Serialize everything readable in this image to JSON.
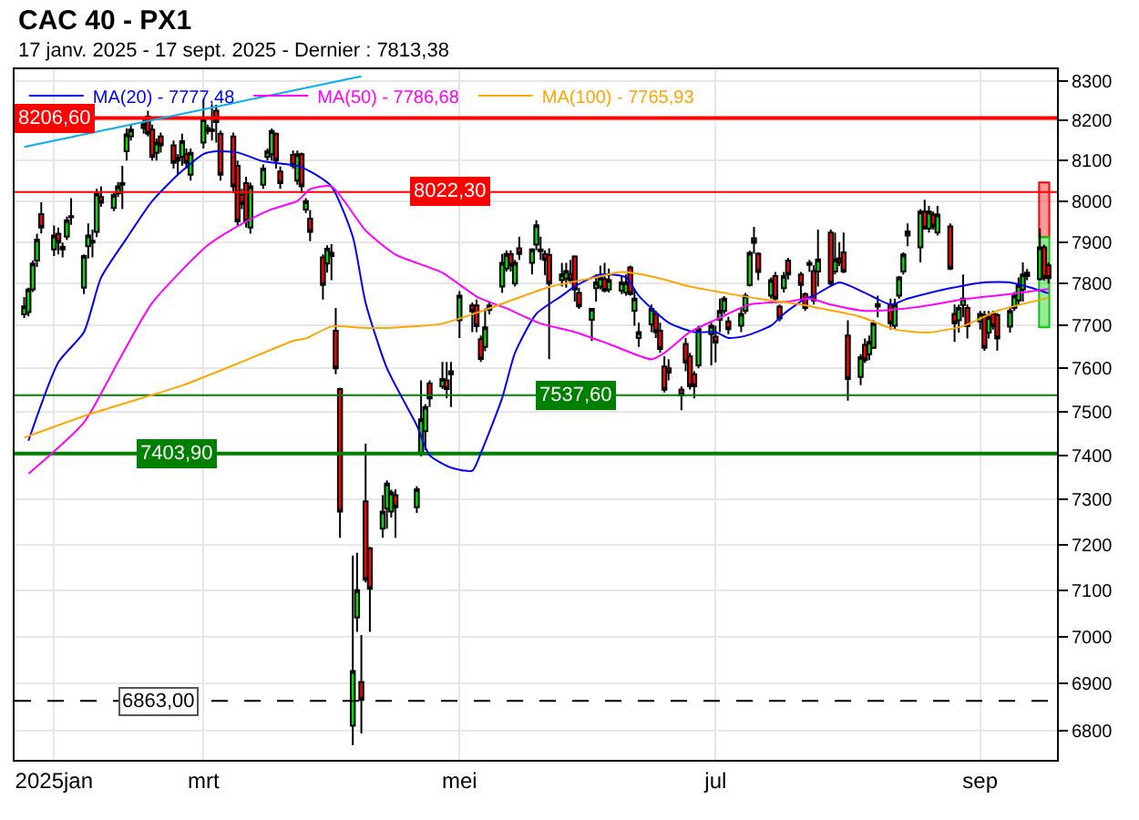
{
  "chart_data": {
    "type": "candlestick",
    "title": "CAC 40 - PX1",
    "subtitle": "17 janv. 2025 - 17 sept. 2025 - Dernier : 7813,38",
    "x": [
      "2025-01-20",
      "2025-01-21",
      "2025-01-22",
      "2025-01-23",
      "2025-01-24",
      "2025-01-27",
      "2025-01-28",
      "2025-01-29",
      "2025-01-30",
      "2025-01-31",
      "2025-02-03",
      "2025-02-04",
      "2025-02-05",
      "2025-02-06",
      "2025-02-07",
      "2025-02-10",
      "2025-02-11",
      "2025-02-12",
      "2025-02-13",
      "2025-02-14",
      "2025-02-17",
      "2025-02-18",
      "2025-02-19",
      "2025-02-20",
      "2025-02-21",
      "2025-02-24",
      "2025-02-25",
      "2025-02-26",
      "2025-02-27",
      "2025-02-28",
      "2025-03-03",
      "2025-03-04",
      "2025-03-05",
      "2025-03-06",
      "2025-03-07",
      "2025-03-10",
      "2025-03-11",
      "2025-03-12",
      "2025-03-13",
      "2025-03-14",
      "2025-03-17",
      "2025-03-18",
      "2025-03-19",
      "2025-03-20",
      "2025-03-21",
      "2025-03-24",
      "2025-03-25",
      "2025-03-26",
      "2025-03-27",
      "2025-03-28",
      "2025-03-31",
      "2025-04-01",
      "2025-04-02",
      "2025-04-03",
      "2025-04-04",
      "2025-04-07",
      "2025-04-08",
      "2025-04-09",
      "2025-04-10",
      "2025-04-11",
      "2025-04-14",
      "2025-04-15",
      "2025-04-16",
      "2025-04-17",
      "2025-04-22",
      "2025-04-23",
      "2025-04-24",
      "2025-04-25",
      "2025-04-28",
      "2025-04-29",
      "2025-04-30",
      "2025-05-02",
      "2025-05-05",
      "2025-05-06",
      "2025-05-07",
      "2025-05-08",
      "2025-05-09",
      "2025-05-12",
      "2025-05-13",
      "2025-05-14",
      "2025-05-15",
      "2025-05-16",
      "2025-05-19",
      "2025-05-20",
      "2025-05-21",
      "2025-05-22",
      "2025-05-23",
      "2025-05-26",
      "2025-05-27",
      "2025-05-28",
      "2025-05-29",
      "2025-05-30",
      "2025-06-02",
      "2025-06-03",
      "2025-06-04",
      "2025-06-05",
      "2025-06-06",
      "2025-06-09",
      "2025-06-10",
      "2025-06-11",
      "2025-06-12",
      "2025-06-13",
      "2025-06-16",
      "2025-06-17",
      "2025-06-18",
      "2025-06-19",
      "2025-06-20",
      "2025-06-23",
      "2025-06-24",
      "2025-06-25",
      "2025-06-26",
      "2025-06-27",
      "2025-06-30",
      "2025-07-01",
      "2025-07-02",
      "2025-07-03",
      "2025-07-04",
      "2025-07-07",
      "2025-07-08",
      "2025-07-09",
      "2025-07-10",
      "2025-07-11",
      "2025-07-14",
      "2025-07-15",
      "2025-07-16",
      "2025-07-17",
      "2025-07-18",
      "2025-07-21",
      "2025-07-22",
      "2025-07-23",
      "2025-07-24",
      "2025-07-25",
      "2025-07-28",
      "2025-07-29",
      "2025-07-30",
      "2025-07-31",
      "2025-08-01",
      "2025-08-04",
      "2025-08-05",
      "2025-08-06",
      "2025-08-07",
      "2025-08-08",
      "2025-08-11",
      "2025-08-12",
      "2025-08-13",
      "2025-08-14",
      "2025-08-15",
      "2025-08-18",
      "2025-08-19",
      "2025-08-20",
      "2025-08-21",
      "2025-08-22",
      "2025-08-25",
      "2025-08-26",
      "2025-08-27",
      "2025-08-28",
      "2025-08-29",
      "2025-09-01",
      "2025-09-02",
      "2025-09-03",
      "2025-09-04",
      "2025-09-05",
      "2025-09-08",
      "2025-09-09",
      "2025-09-10",
      "2025-09-11",
      "2025-09-12",
      "2025-09-15",
      "2025-09-16",
      "2025-09-17"
    ],
    "ohlc": [
      [
        7727,
        7768,
        7718,
        7746
      ],
      [
        7732,
        7790,
        7722,
        7786
      ],
      [
        7786,
        7855,
        7780,
        7848
      ],
      [
        7855,
        7920,
        7840,
        7906
      ],
      [
        7968,
        7997,
        7921,
        7935
      ],
      [
        7882,
        7940,
        7866,
        7916
      ],
      [
        7920,
        7935,
        7870,
        7899
      ],
      [
        7889,
        7899,
        7863,
        7882
      ],
      [
        7913,
        7962,
        7905,
        7953
      ],
      [
        7960,
        8007,
        7942,
        7963
      ],
      [
        7790,
        7870,
        7775,
        7866
      ],
      [
        7890,
        7945,
        7860,
        7916
      ],
      [
        7903,
        7930,
        7863,
        7899
      ],
      [
        7925,
        8030,
        7912,
        8018
      ],
      [
        8010,
        8036,
        7986,
        7996
      ],
      [
        7983,
        8020,
        7975,
        8015
      ],
      [
        8019,
        8047,
        8010,
        8036
      ],
      [
        8040,
        8087,
        7980,
        8044
      ],
      [
        8123,
        8180,
        8100,
        8165
      ],
      [
        8160,
        8190,
        8150,
        8177
      ],
      [
        8181,
        8210,
        8167,
        8191
      ],
      [
        8210,
        8225,
        8160,
        8167
      ],
      [
        8177,
        8190,
        8100,
        8109
      ],
      [
        8119,
        8155,
        8100,
        8145
      ],
      [
        8160,
        8170,
        8120,
        8138
      ],
      [
        8138,
        8150,
        8080,
        8094
      ],
      [
        8100,
        8116,
        8065,
        8106
      ],
      [
        8109,
        8167,
        8087,
        8148
      ],
      [
        8116,
        8130,
        8080,
        8094
      ],
      [
        8065,
        8130,
        8050,
        8119
      ],
      [
        8145,
        8254,
        8130,
        8203
      ],
      [
        8181,
        8190,
        8165,
        8174
      ],
      [
        8177,
        8240,
        8150,
        8174
      ],
      [
        8225,
        8240,
        8145,
        8196
      ],
      [
        8167,
        8175,
        8050,
        8065
      ],
      [
        8160,
        8170,
        8020,
        8036
      ],
      [
        8087,
        8100,
        7940,
        7950
      ],
      [
        8015,
        8030,
        7980,
        7993
      ],
      [
        8044,
        8060,
        7935,
        7950
      ],
      [
        7935,
        8045,
        7920,
        8036
      ],
      [
        8040,
        8090,
        8030,
        8080
      ],
      [
        8109,
        8130,
        8100,
        8123
      ],
      [
        8116,
        8180,
        8100,
        8174
      ],
      [
        8167,
        8170,
        8080,
        8100
      ],
      [
        8073,
        8085,
        8030,
        8044
      ],
      [
        8114,
        8125,
        8080,
        8087
      ],
      [
        8050,
        8125,
        8040,
        8116
      ],
      [
        8116,
        8120,
        8020,
        8036
      ],
      [
        7979,
        8007,
        7971,
        8000
      ],
      [
        7957,
        7978,
        7902,
        7925
      ],
      [
        7863,
        7870,
        7762,
        7797
      ],
      [
        7848,
        7892,
        7826,
        7884
      ],
      [
        7866,
        7895,
        7808,
        7874
      ],
      [
        7688,
        7742,
        7586,
        7600
      ],
      [
        7552,
        7555,
        7215,
        7273
      ],
      [
        6811,
        7176,
        6770,
        6926
      ],
      [
        7041,
        7182,
        7010,
        7100
      ],
      [
        6903,
        7003,
        6795,
        6865
      ],
      [
        7296,
        7426,
        7117,
        7123
      ],
      [
        7192,
        7195,
        7010,
        7103
      ],
      [
        7235,
        7310,
        7215,
        7273
      ],
      [
        7280,
        7343,
        7235,
        7336
      ],
      [
        7273,
        7322,
        7260,
        7316
      ],
      [
        7310,
        7323,
        7215,
        7283
      ],
      [
        7283,
        7330,
        7270,
        7323
      ],
      [
        7405,
        7572,
        7398,
        7482
      ],
      [
        7455,
        7517,
        7412,
        7510
      ],
      [
        7565,
        7572,
        7510,
        7530
      ],
      [
        7558,
        7615,
        7552,
        7575
      ],
      [
        7572,
        7615,
        7530,
        7552
      ],
      [
        7586,
        7615,
        7510,
        7593
      ],
      [
        7713,
        7782,
        7671,
        7771
      ],
      [
        7748,
        7755,
        7685,
        7734
      ],
      [
        7748,
        7762,
        7685,
        7699
      ],
      [
        7668,
        7677,
        7615,
        7622
      ],
      [
        7650,
        7741,
        7640,
        7696
      ],
      [
        7737,
        7755,
        7727,
        7748
      ],
      [
        7793,
        7871,
        7778,
        7850
      ],
      [
        7836,
        7880,
        7829,
        7871
      ],
      [
        7871,
        7880,
        7829,
        7843
      ],
      [
        7800,
        7857,
        7793,
        7850
      ],
      [
        7885,
        7913,
        7857,
        7871
      ],
      [
        7850,
        7885,
        7822,
        7882
      ],
      [
        7894,
        7953,
        7880,
        7941
      ],
      [
        7882,
        7913,
        7857,
        7878
      ],
      [
        7871,
        7880,
        7820,
        7857
      ],
      [
        7869,
        7885,
        7621,
        7800
      ],
      [
        7808,
        7850,
        7793,
        7822
      ],
      [
        7812,
        7850,
        7790,
        7830
      ],
      [
        7822,
        7857,
        7800,
        7808
      ],
      [
        7865,
        7868,
        7757,
        7786
      ],
      [
        7778,
        7790,
        7740,
        7746
      ],
      [
        7714,
        7740,
        7664,
        7740
      ],
      [
        7789,
        7822,
        7757,
        7803
      ],
      [
        7793,
        7843,
        7786,
        7814
      ],
      [
        7811,
        7850,
        7779,
        7783
      ],
      [
        7786,
        7836,
        7779,
        7808
      ],
      [
        7783,
        7820,
        7775,
        7803
      ],
      [
        7779,
        7822,
        7771,
        7803
      ],
      [
        7839,
        7843,
        7771,
        7775
      ],
      [
        7735,
        7786,
        7700,
        7764
      ],
      [
        7671,
        7707,
        7650,
        7685
      ],
      [
        7703,
        7750,
        7685,
        7740
      ],
      [
        7728,
        7735,
        7671,
        7685
      ],
      [
        7688,
        7707,
        7636,
        7645
      ],
      [
        7604,
        7628,
        7544,
        7550
      ],
      [
        7600,
        7621,
        7572,
        7590
      ],
      [
        7551,
        7558,
        7503,
        7537
      ],
      [
        7657,
        7671,
        7593,
        7614
      ],
      [
        7628,
        7636,
        7551,
        7558
      ],
      [
        7586,
        7593,
        7530,
        7558
      ],
      [
        7607,
        7700,
        7600,
        7692
      ],
      [
        7680,
        7707,
        7607,
        7700
      ],
      [
        7674,
        7700,
        7614,
        7660
      ],
      [
        7714,
        7764,
        7685,
        7735
      ],
      [
        7735,
        7770,
        7728,
        7764
      ],
      [
        7710,
        7721,
        7680,
        7692
      ],
      [
        7700,
        7742,
        7685,
        7728
      ],
      [
        7735,
        7778,
        7728,
        7771
      ],
      [
        7797,
        7879,
        7793,
        7874
      ],
      [
        7909,
        7937,
        7872,
        7898
      ],
      [
        7872,
        7875,
        7808,
        7828
      ],
      [
        7771,
        7815,
        7764,
        7808
      ],
      [
        7818,
        7828,
        7757,
        7764
      ],
      [
        7745,
        7750,
        7710,
        7717
      ],
      [
        7789,
        7828,
        7779,
        7818
      ],
      [
        7855,
        7862,
        7810,
        7822
      ],
      [
        7822,
        7828,
        7757,
        7797
      ],
      [
        7775,
        7779,
        7735,
        7742
      ],
      [
        7845,
        7857,
        7828,
        7850
      ],
      [
        7830,
        7844,
        7750,
        7760
      ],
      [
        7829,
        7930,
        7793,
        7858
      ],
      [
        7923,
        7930,
        7793,
        7800
      ],
      [
        7829,
        7923,
        7822,
        7858
      ],
      [
        7851,
        7900,
        7842,
        7861
      ],
      [
        7875,
        7923,
        7825,
        7829
      ],
      [
        7677,
        7713,
        7525,
        7575
      ],
      [
        7580,
        7633,
        7561,
        7626
      ],
      [
        7655,
        7670,
        7612,
        7619
      ],
      [
        7633,
        7677,
        7619,
        7662
      ],
      [
        7648,
        7713,
        7645,
        7706
      ],
      [
        7745,
        7771,
        7720,
        7751
      ],
      [
        7750,
        7764,
        7691,
        7706
      ],
      [
        7700,
        7764,
        7691,
        7750
      ],
      [
        7771,
        7818,
        7764,
        7815
      ],
      [
        7829,
        7875,
        7822,
        7870
      ],
      [
        7916,
        7945,
        7890,
        7926
      ],
      [
        7887,
        7980,
        7851,
        7974
      ],
      [
        7974,
        8003,
        7930,
        7933
      ],
      [
        7933,
        7988,
        7923,
        7974
      ],
      [
        7967,
        7974,
        7930,
        7938
      ],
      [
        7923,
        7988,
        7916,
        7967
      ],
      [
        7938,
        7945,
        7832,
        7836
      ],
      [
        7728,
        7750,
        7662,
        7706
      ],
      [
        7713,
        7750,
        7684,
        7742
      ],
      [
        7749,
        7822,
        7720,
        7764
      ],
      [
        7742,
        7750,
        7670,
        7699
      ],
      [
        7710,
        7735,
        7691,
        7728
      ],
      [
        7725,
        7735,
        7641,
        7648
      ],
      [
        7684,
        7735,
        7670,
        7720
      ],
      [
        7728,
        7735,
        7691,
        7699
      ],
      [
        7725,
        7730,
        7641,
        7670
      ],
      [
        7698,
        7742,
        7684,
        7735
      ],
      [
        7742,
        7780,
        7735,
        7771
      ],
      [
        7760,
        7815,
        7750,
        7797
      ],
      [
        7786,
        7851,
        7757,
        7822
      ],
      [
        7826,
        7835,
        7808,
        7818
      ],
      [
        7811,
        7933,
        7807,
        7887
      ],
      [
        7887,
        7894,
        7807,
        7815
      ],
      [
        7844,
        7851,
        7800,
        7813
      ]
    ],
    "series": [
      {
        "type": "line",
        "name": "MA(20) - 7777,48",
        "color": "#0000ff",
        "x": [
          "2025-01-21",
          "2025-01-28",
          "2025-02-03",
          "2025-02-07",
          "2025-02-13",
          "2025-02-19",
          "2025-02-25",
          "2025-03-03",
          "2025-03-06",
          "2025-03-11",
          "2025-03-17",
          "2025-03-20",
          "2025-03-25",
          "2025-03-28",
          "2025-04-02",
          "2025-04-07",
          "2025-04-10",
          "2025-04-15",
          "2025-04-22",
          "2025-04-25",
          "2025-04-30",
          "2025-05-05",
          "2025-05-07",
          "2025-05-12",
          "2025-05-15",
          "2025-05-20",
          "2025-05-26",
          "2025-05-29",
          "2025-06-04",
          "2025-06-10",
          "2025-06-13",
          "2025-06-20",
          "2025-06-26",
          "2025-07-01",
          "2025-07-04",
          "2025-07-08",
          "2025-07-14",
          "2025-07-17",
          "2025-07-22",
          "2025-07-24",
          "2025-07-30",
          "2025-08-05",
          "2025-08-11",
          "2025-08-15",
          "2025-08-25",
          "2025-09-02",
          "2025-09-08",
          "2025-09-12",
          "2025-09-17"
        ],
        "values": [
          7433,
          7614,
          7685,
          7814,
          7909,
          8000,
          8065,
          8116,
          8123,
          8120,
          8098,
          8094,
          8087,
          8073,
          8036,
          7913,
          7754,
          7600,
          7468,
          7400,
          7372,
          7365,
          7405,
          7531,
          7636,
          7728,
          7771,
          7793,
          7822,
          7815,
          7771,
          7707,
          7685,
          7685,
          7671,
          7676,
          7700,
          7728,
          7764,
          7771,
          7803,
          7778,
          7750,
          7764,
          7789,
          7803,
          7803,
          7793,
          7777
        ]
      },
      {
        "type": "line",
        "name": "MA(50) - 7786,68",
        "color": "#ff00ff",
        "x": [
          "2025-01-21",
          "2025-02-03",
          "2025-02-11",
          "2025-02-19",
          "2025-03-04",
          "2025-03-13",
          "2025-03-19",
          "2025-03-25",
          "2025-03-28",
          "2025-04-02",
          "2025-04-10",
          "2025-04-17",
          "2025-04-28",
          "2025-05-06",
          "2025-05-13",
          "2025-05-21",
          "2025-05-29",
          "2025-06-06",
          "2025-06-16",
          "2025-06-19",
          "2025-06-25",
          "2025-07-01",
          "2025-07-09",
          "2025-07-18",
          "2025-07-23",
          "2025-07-28",
          "2025-08-05",
          "2025-08-13",
          "2025-08-21",
          "2025-08-29",
          "2025-09-08",
          "2025-09-17"
        ],
        "values": [
          7358,
          7475,
          7615,
          7754,
          7892,
          7950,
          7980,
          8000,
          8029,
          8036,
          7928,
          7870,
          7826,
          7769,
          7741,
          7705,
          7685,
          7657,
          7621,
          7636,
          7685,
          7714,
          7750,
          7757,
          7764,
          7750,
          7735,
          7739,
          7750,
          7764,
          7775,
          7787
        ]
      },
      {
        "type": "line",
        "name": "MA(100) - 7765,93",
        "color": "#ffa500",
        "x": [
          "2025-01-20",
          "2025-02-05",
          "2025-02-26",
          "2025-03-12",
          "2025-03-24",
          "2025-03-27",
          "2025-04-02",
          "2025-04-09",
          "2025-04-16",
          "2025-04-28",
          "2025-05-07",
          "2025-05-16",
          "2025-05-23",
          "2025-06-03",
          "2025-06-09",
          "2025-06-17",
          "2025-06-25",
          "2025-07-03",
          "2025-07-11",
          "2025-07-21",
          "2025-07-25",
          "2025-08-04",
          "2025-08-12",
          "2025-08-20",
          "2025-08-28",
          "2025-09-05",
          "2025-09-17"
        ],
        "values": [
          7440,
          7496,
          7560,
          7615,
          7664,
          7670,
          7698,
          7695,
          7695,
          7705,
          7734,
          7767,
          7792,
          7815,
          7828,
          7815,
          7793,
          7778,
          7764,
          7750,
          7742,
          7721,
          7691,
          7684,
          7699,
          7735,
          7766
        ]
      },
      {
        "type": "line",
        "color": "#00b0f0",
        "x": [
          "2025-01-20",
          "2025-04-09"
        ],
        "values": [
          8134,
          8312
        ]
      },
      {
        "type": "bar",
        "color": "#ff0000",
        "x": [
          "2025-09-16"
        ],
        "base": [
          7912
        ],
        "values": [
          134
        ]
      },
      {
        "type": "bar",
        "color": "#00cc00",
        "x": [
          "2025-09-16"
        ],
        "base": [
          7696
        ],
        "values": [
          216
        ]
      }
    ],
    "ref_lines": [
      {
        "axis": "y",
        "value": 8206.6,
        "label": "8206,60",
        "color": "#ff0000"
      },
      {
        "axis": "y",
        "value": 8022.3,
        "label": "8022,30",
        "color": "#ff0000"
      },
      {
        "axis": "y",
        "value": 7537.6,
        "label": "7537,60",
        "color": "#008000"
      },
      {
        "axis": "y",
        "value": 7403.9,
        "label": "7403,90",
        "color": "#008000"
      },
      {
        "axis": "y",
        "value": 6863,
        "label": "6863,00",
        "color": "#000000",
        "line_style": "dashed"
      }
    ],
    "xlim": [
      "2025-01-17T18:00",
      "2025-09-19"
    ],
    "xticks": [
      {
        "value": "2025-01-27",
        "label": "2025jan"
      },
      {
        "value": "2025-03-03",
        "label": "mrt"
      },
      {
        "value": "2025-05-02",
        "label": "mei"
      },
      {
        "value": "2025-07-01",
        "label": "jul"
      },
      {
        "value": "2025-09-01",
        "label": "sep"
      }
    ],
    "ylim": [
      6740,
      8330
    ],
    "yticks": [
      6800,
      6900,
      7000,
      7100,
      7200,
      7300,
      7400,
      7500,
      7600,
      7700,
      7800,
      7900,
      8000,
      8100,
      8200,
      8300
    ],
    "log": true,
    "grid": true,
    "legend": "top left"
  }
}
